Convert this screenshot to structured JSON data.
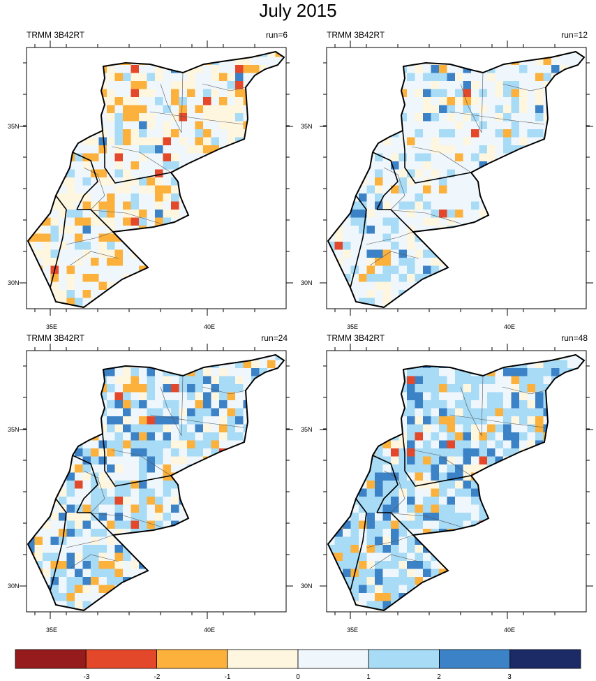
{
  "title": "July 2015",
  "panels": [
    {
      "left_label": "TRMM 3B42RT",
      "right_label": "run=6"
    },
    {
      "left_label": "TRMM 3B42RT",
      "right_label": "run=12"
    },
    {
      "left_label": "TRMM 3B42RT",
      "right_label": "run=24"
    },
    {
      "left_label": "TRMM 3B42RT",
      "right_label": "run=48"
    }
  ],
  "axes": {
    "lon_ticks": [
      "35E",
      "40E"
    ],
    "lat_ticks": [
      "35N",
      "30N"
    ]
  },
  "colorbar": {
    "tick_labels": [
      "-3",
      "-2",
      "-1",
      "0",
      "1",
      "2",
      "3"
    ],
    "colors": [
      "#951b1c",
      "#e4482a",
      "#fbb13b",
      "#fef6df",
      "#eff7fc",
      "#a7dbf6",
      "#3c82c6",
      "#1c2b66"
    ]
  }
}
